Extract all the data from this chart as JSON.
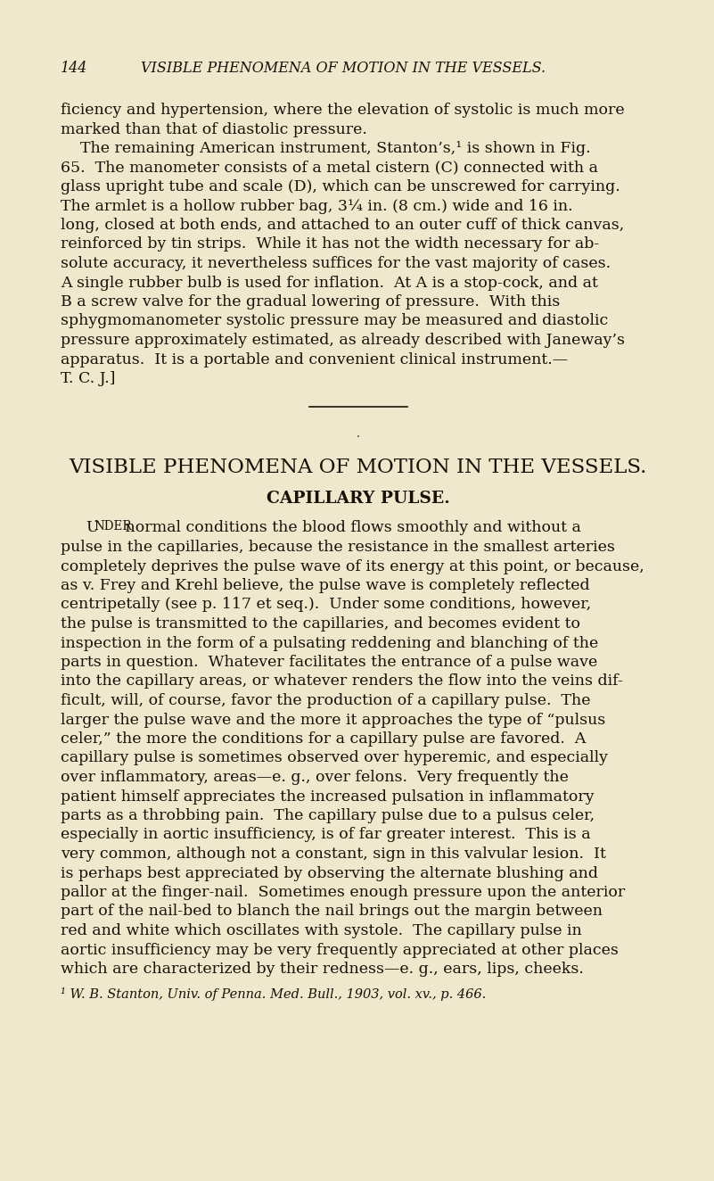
{
  "background_color": "#f0e8cc",
  "text_color": "#1a1008",
  "header_pagenum": "144",
  "header_title": "VISIBLE PHENOMENA OF MOTION IN THE VESSELS.",
  "section_heading": "VISIBLE PHENOMENA OF MOTION IN THE VESSELS.",
  "subsection_heading": "CAPILLARY PULSE.",
  "footnote": "¹ W. B. Stanton, Univ. of Penna. Med. Bull., 1903, vol. xv., p. 466.",
  "lines": [
    {
      "text": "ficiency and hypertension, where the elevation of systolic is much more",
      "type": "body"
    },
    {
      "text": "marked than that of diastolic pressure.",
      "type": "body"
    },
    {
      "text": "    The remaining American instrument, Stanton’s,¹ is shown in Fig.",
      "type": "body_indent"
    },
    {
      "text": "65.  The manometer consists of a metal cistern (C) connected with a",
      "type": "body"
    },
    {
      "text": "glass upright tube and scale (D), which can be unscrewed for carrying.",
      "type": "body"
    },
    {
      "text": "The armlet is a hollow rubber bag, 3¼ in. (8 cm.) wide and 16 in.",
      "type": "body"
    },
    {
      "text": "long, closed at both ends, and attached to an outer cuff of thick canvas,",
      "type": "body"
    },
    {
      "text": "reinforced by tin strips.  While it has not the width necessary for ab-",
      "type": "body"
    },
    {
      "text": "solute accuracy, it nevertheless suffices for the vast majority of cases.",
      "type": "body"
    },
    {
      "text": "A single rubber bulb is used for inflation.  At A is a stop-cock, and at",
      "type": "body"
    },
    {
      "text": "B a screw valve for the gradual lowering of pressure.  With this",
      "type": "body"
    },
    {
      "text": "sphygmomanometer systolic pressure may be measured and diastolic",
      "type": "body"
    },
    {
      "text": "pressure approximately estimated, as already described with Janeway’s",
      "type": "body"
    },
    {
      "text": "apparatus.  It is a portable and convenient clinical instrument.—",
      "type": "body"
    },
    {
      "text": "T. C. J.]",
      "type": "body"
    },
    {
      "text": "UNDER_FIRST    normal conditions the blood flows smoothly and without a",
      "type": "body_under"
    },
    {
      "text": "pulse in the capillaries, because the resistance in the smallest arteries",
      "type": "body"
    },
    {
      "text": "completely deprives the pulse wave of its energy at this point, or because,",
      "type": "body"
    },
    {
      "text": "as v. Frey and Krehl believe, the pulse wave is completely reflected",
      "type": "body"
    },
    {
      "text": "centripetally (see p. 117 et seq.).  Under some conditions, however,",
      "type": "body"
    },
    {
      "text": "the pulse is transmitted to the capillaries, and becomes evident to",
      "type": "body"
    },
    {
      "text": "inspection in the form of a pulsating reddening and blanching of the",
      "type": "body"
    },
    {
      "text": "parts in question.  Whatever facilitates the entrance of a pulse wave",
      "type": "body"
    },
    {
      "text": "into the capillary areas, or whatever renders the flow into the veins dif-",
      "type": "body"
    },
    {
      "text": "ficult, will, of course, favor the production of a capillary pulse.  The",
      "type": "body"
    },
    {
      "text": "larger the pulse wave and the more it approaches the type of “pulsus",
      "type": "body"
    },
    {
      "text": "celer,” the more the conditions for a capillary pulse are favored.  A",
      "type": "body"
    },
    {
      "text": "capillary pulse is sometimes observed over hyperemic, and especially",
      "type": "body"
    },
    {
      "text": "over inflammatory, areas—e. g., over felons.  Very frequently the",
      "type": "body"
    },
    {
      "text": "patient himself appreciates the increased pulsation in inflammatory",
      "type": "body"
    },
    {
      "text": "parts as a throbbing pain.  The capillary pulse due to a pulsus celer,",
      "type": "body"
    },
    {
      "text": "especially in aortic insufficiency, is of far greater interest.  This is a",
      "type": "body"
    },
    {
      "text": "very common, although not a constant, sign in this valvular lesion.  It",
      "type": "body"
    },
    {
      "text": "is perhaps best appreciated by observing the alternate blushing and",
      "type": "body"
    },
    {
      "text": "pallor at the finger-nail.  Sometimes enough pressure upon the anterior",
      "type": "body"
    },
    {
      "text": "part of the nail-bed to blanch the nail brings out the margin between",
      "type": "body"
    },
    {
      "text": "red and white which oscillates with systole.  The capillary pulse in",
      "type": "body"
    },
    {
      "text": "aortic insufficiency may be very frequently appreciated at other places",
      "type": "body"
    },
    {
      "text": "which are characterized by their redness—e. g., ears, lips, cheeks.",
      "type": "body"
    }
  ]
}
